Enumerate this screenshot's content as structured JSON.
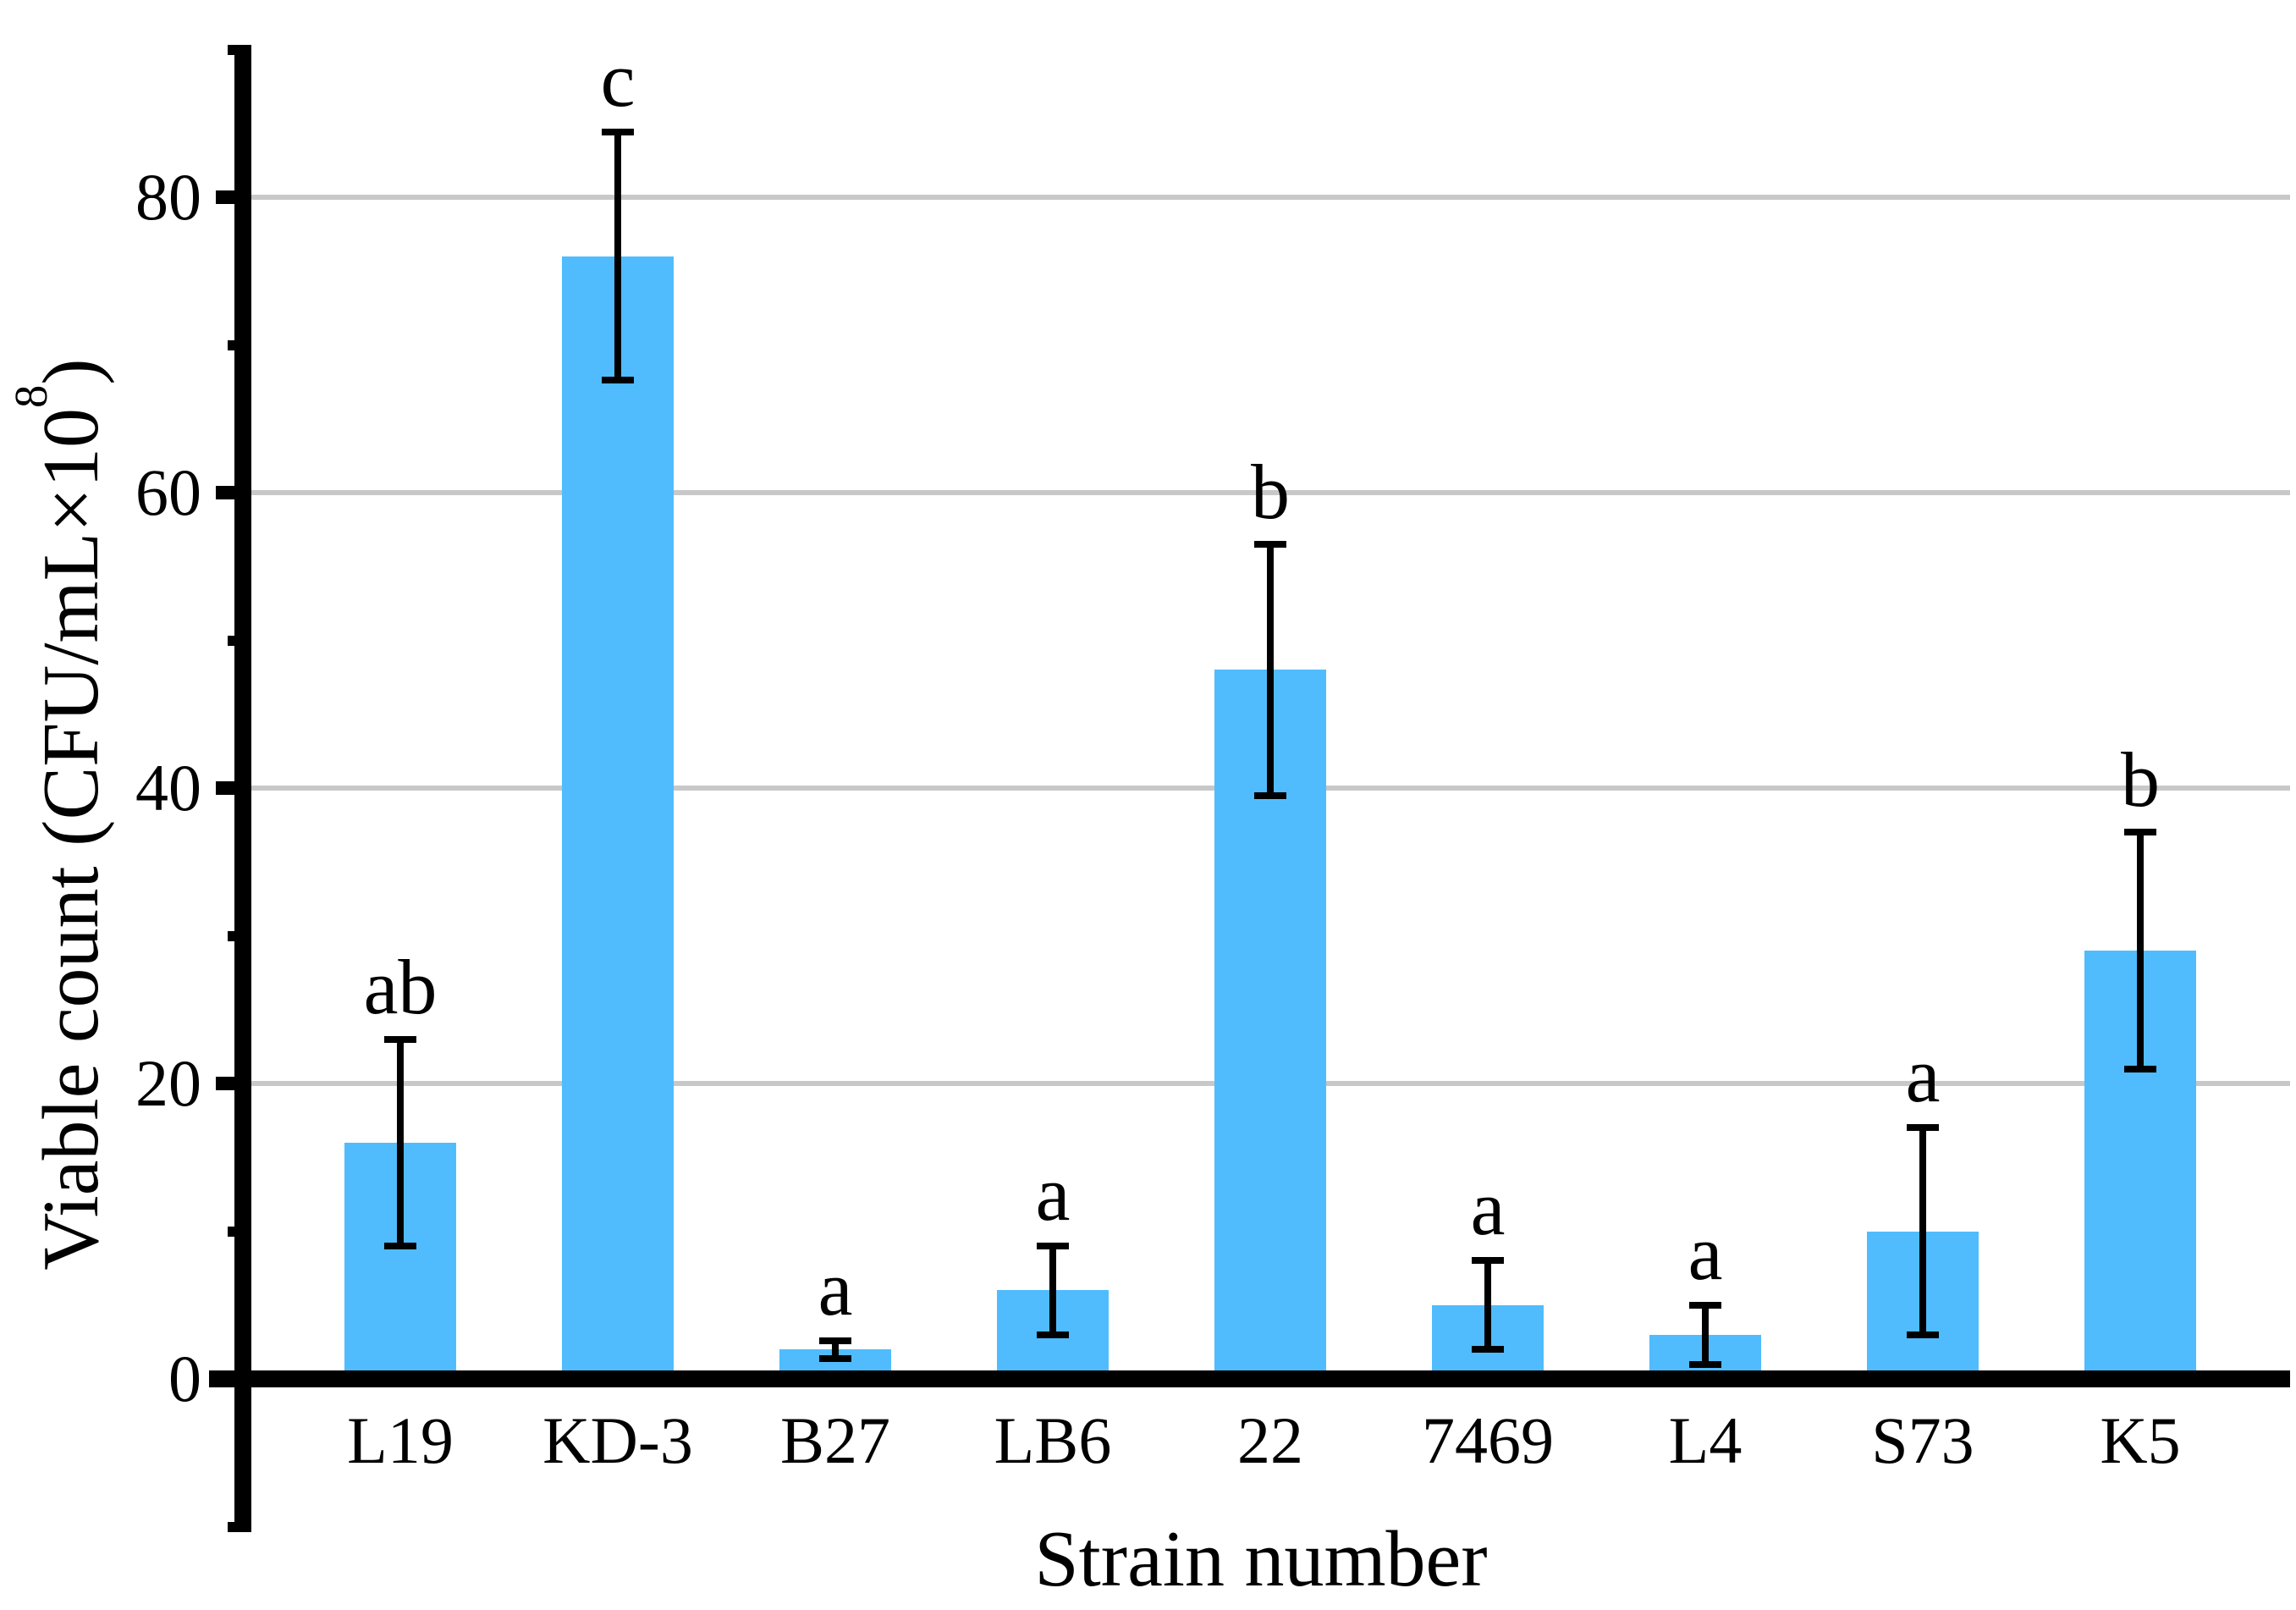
{
  "figure": {
    "background": "#ffffff",
    "font_style": "serif"
  },
  "chart_data": {
    "type": "bar",
    "title": "",
    "xlabel": "Strain number",
    "ylabel": "Viable count（CFU/mL×10⁸）",
    "ylabel_before": "Viable count (CFU/mL×10",
    "ylabel_sup": "8",
    "ylabel_after": ")",
    "categories": [
      "L19",
      "KD-3",
      "B27",
      "LB6",
      "22",
      "7469",
      "L4",
      "S73",
      "K5"
    ],
    "values": [
      16,
      76,
      2,
      6,
      48,
      5,
      3,
      10,
      29
    ],
    "errors": [
      7,
      8.4,
      0.6,
      3,
      8.5,
      3,
      2,
      7,
      8
    ],
    "sig_letters": [
      "ab",
      "c",
      "a",
      "a",
      "b",
      "a",
      "a",
      "a",
      "b"
    ],
    "ylim": [
      -10,
      90
    ],
    "y_major_ticks": [
      0,
      20,
      40,
      60,
      80
    ],
    "y_minor_ticks": [
      -10,
      10,
      30,
      50,
      70,
      90
    ],
    "grid_values": [
      20,
      40,
      60,
      80
    ],
    "grid": "horizontal-major-only",
    "legend": "none",
    "bar_color": "#50BCFE",
    "grid_color": "#C8C8C8",
    "axis_color": "#000000",
    "error_bar_style": "symmetric-caps-both-ends"
  }
}
